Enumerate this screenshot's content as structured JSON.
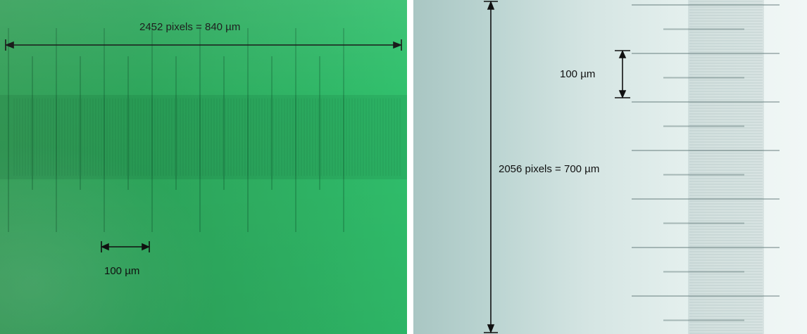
{
  "left_panel": {
    "width_label": "2452 pixels = 840 µm",
    "scale_label": "100 µm",
    "colors": {
      "background": "#2fae60"
    }
  },
  "right_panel": {
    "height_label": "2056 pixels = 700 µm",
    "scale_label": "100 µm",
    "colors": {
      "background": "#d6e6e4"
    }
  }
}
